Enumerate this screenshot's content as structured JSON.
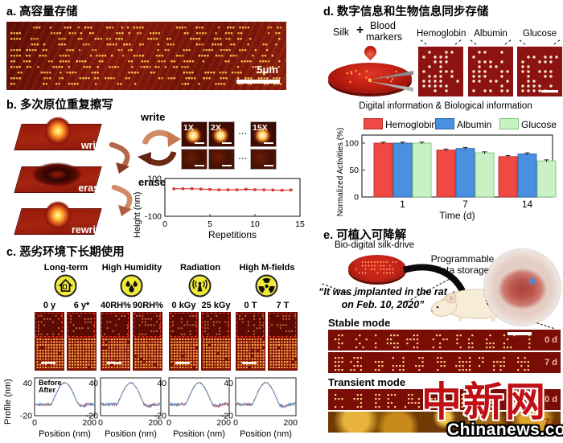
{
  "panels": {
    "a": {
      "label": "a.",
      "title": "高容量存储",
      "scale_bar": "5μm"
    },
    "b": {
      "label": "b.",
      "title": "多次原位重复擦写",
      "steps": [
        "write",
        "erase",
        "rewrite"
      ],
      "cycle_top": "write",
      "cycle_bottom": "erase",
      "inset_labels": [
        "1X",
        "2X",
        "15X"
      ],
      "ellipsis": "···"
    },
    "c": {
      "label": "c.",
      "title": "恶劣环境下长期使用",
      "conditions": [
        {
          "name": "Long-term",
          "icon": "house-icon",
          "before": "0 y",
          "after": "6 y*"
        },
        {
          "name": "High Humidity",
          "icon": "droplets-icon",
          "before": "40RH%",
          "after": "90RH%"
        },
        {
          "name": "Radiation",
          "icon": "antenna-icon",
          "before": "0 kGy",
          "after": "25 kGy"
        },
        {
          "name": "High M-fields",
          "icon": "radiation-icon",
          "before": "0 T",
          "after": "7 T"
        }
      ]
    },
    "d": {
      "label": "d.",
      "title": "数字信息和生物信息同步存储",
      "silk_label": "Silk",
      "plus": "+",
      "blood_line1": "Blood",
      "blood_line2": "markers",
      "sample_labels": [
        "Hemoglobin",
        "Albumin",
        "Glucose"
      ],
      "caption": "Digital information & Biological information"
    },
    "e": {
      "label": "e.",
      "title": "可植入可降解",
      "drive_label": "Bio-digital silk-drive",
      "storage_line1": "Programmable",
      "storage_line2": "data storage",
      "quote_line1": "“It was implanted in the rat",
      "quote_line2": "on Feb. 10, 2020”",
      "stable_label": "Stable mode",
      "transient_label": "Transient mode",
      "strip_times": [
        "0 d",
        "7 d",
        "0 d",
        "7 d"
      ]
    }
  },
  "watermark": {
    "cn": "中新网",
    "en": "Chinanews.com"
  },
  "colors": {
    "image_bg": "#7a1208",
    "dot_yellow": "#ffc24d",
    "silk_red": "#c21f14",
    "watermark_red": "#c01015",
    "icon_yellow": "#f2ea3a"
  },
  "chart_data": [
    {
      "id": "height_vs_repetitions",
      "type": "line",
      "x": [
        1,
        2,
        3,
        4,
        5,
        6,
        7,
        8,
        9,
        10,
        11,
        12,
        13,
        14
      ],
      "y": [
        45,
        46,
        46,
        44,
        42,
        40,
        40,
        40,
        43,
        41,
        40,
        39,
        38,
        39
      ],
      "ylabel": "Height (nm)",
      "xlabel": "Repetitions",
      "ylim": [
        -100,
        100
      ],
      "xlim": [
        0,
        15
      ],
      "yticks": [
        100,
        -100
      ],
      "xticks": [
        0,
        5,
        10,
        15
      ],
      "color": "#d93838",
      "marker": "square",
      "grid": false
    },
    {
      "id": "erase_profiles",
      "type": "line",
      "copies": 4,
      "ylabel": "Profile (nm)",
      "xlabel": "Position (nm)",
      "ylim": [
        -20,
        50
      ],
      "xlim": [
        0,
        220
      ],
      "yticks": [
        40,
        -20
      ],
      "xticks": [
        0,
        200
      ],
      "legend": [
        {
          "label": "Before",
          "color": "#e03028"
        },
        {
          "label": "After",
          "color": "#38a8e8"
        }
      ],
      "peak_nm": 40,
      "baseline_nm": 0,
      "peak_center_nm": 110,
      "grid": false
    },
    {
      "id": "normalized_activities",
      "type": "bar",
      "categories": [
        "1",
        "7",
        "14"
      ],
      "series": [
        {
          "name": "Hemoglobin",
          "color": "#f04843",
          "edge": "#b52e2a",
          "values": [
            100,
            87,
            75
          ]
        },
        {
          "name": "Albumin",
          "color": "#4a90e0",
          "edge": "#2f64a8",
          "values": [
            100,
            90,
            80
          ]
        },
        {
          "name": "Glucose",
          "color": "#c9f2c4",
          "edge": "#7fc47f",
          "values": [
            100,
            82,
            67
          ]
        }
      ],
      "error_bar": 2,
      "ylabel": "Normalized Activities (%)",
      "xlabel": "Time (d)",
      "ylim": [
        0,
        115
      ],
      "yticks": [
        0,
        50,
        100
      ],
      "legend_position": "top",
      "grid": false
    }
  ]
}
